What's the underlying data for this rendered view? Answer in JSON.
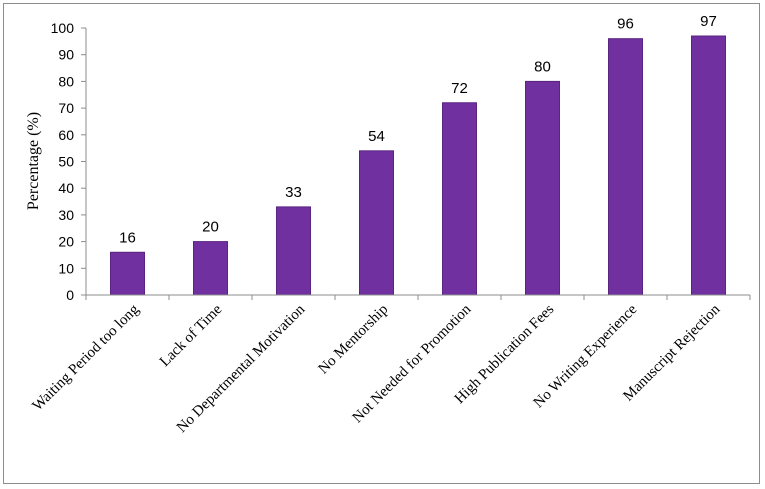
{
  "chart_data": {
    "type": "bar",
    "title": "",
    "xlabel": "",
    "ylabel": "Percentage (%)",
    "ylim": [
      0,
      100
    ],
    "yticks": [
      0,
      10,
      20,
      30,
      40,
      50,
      60,
      70,
      80,
      90,
      100
    ],
    "grid": false,
    "categories": [
      "Waiting Period too long",
      "Lack of Time",
      "No Departmental Motivation",
      "No Mentorship",
      "Not Needed for Promotion",
      "High Publication Fees",
      "No Writing Experience",
      "Manuscript Rejection"
    ],
    "values": [
      16,
      20,
      33,
      54,
      72,
      80,
      96,
      97
    ],
    "bar_color": "#7030A0",
    "bar_edge_color": "#5a2480"
  }
}
